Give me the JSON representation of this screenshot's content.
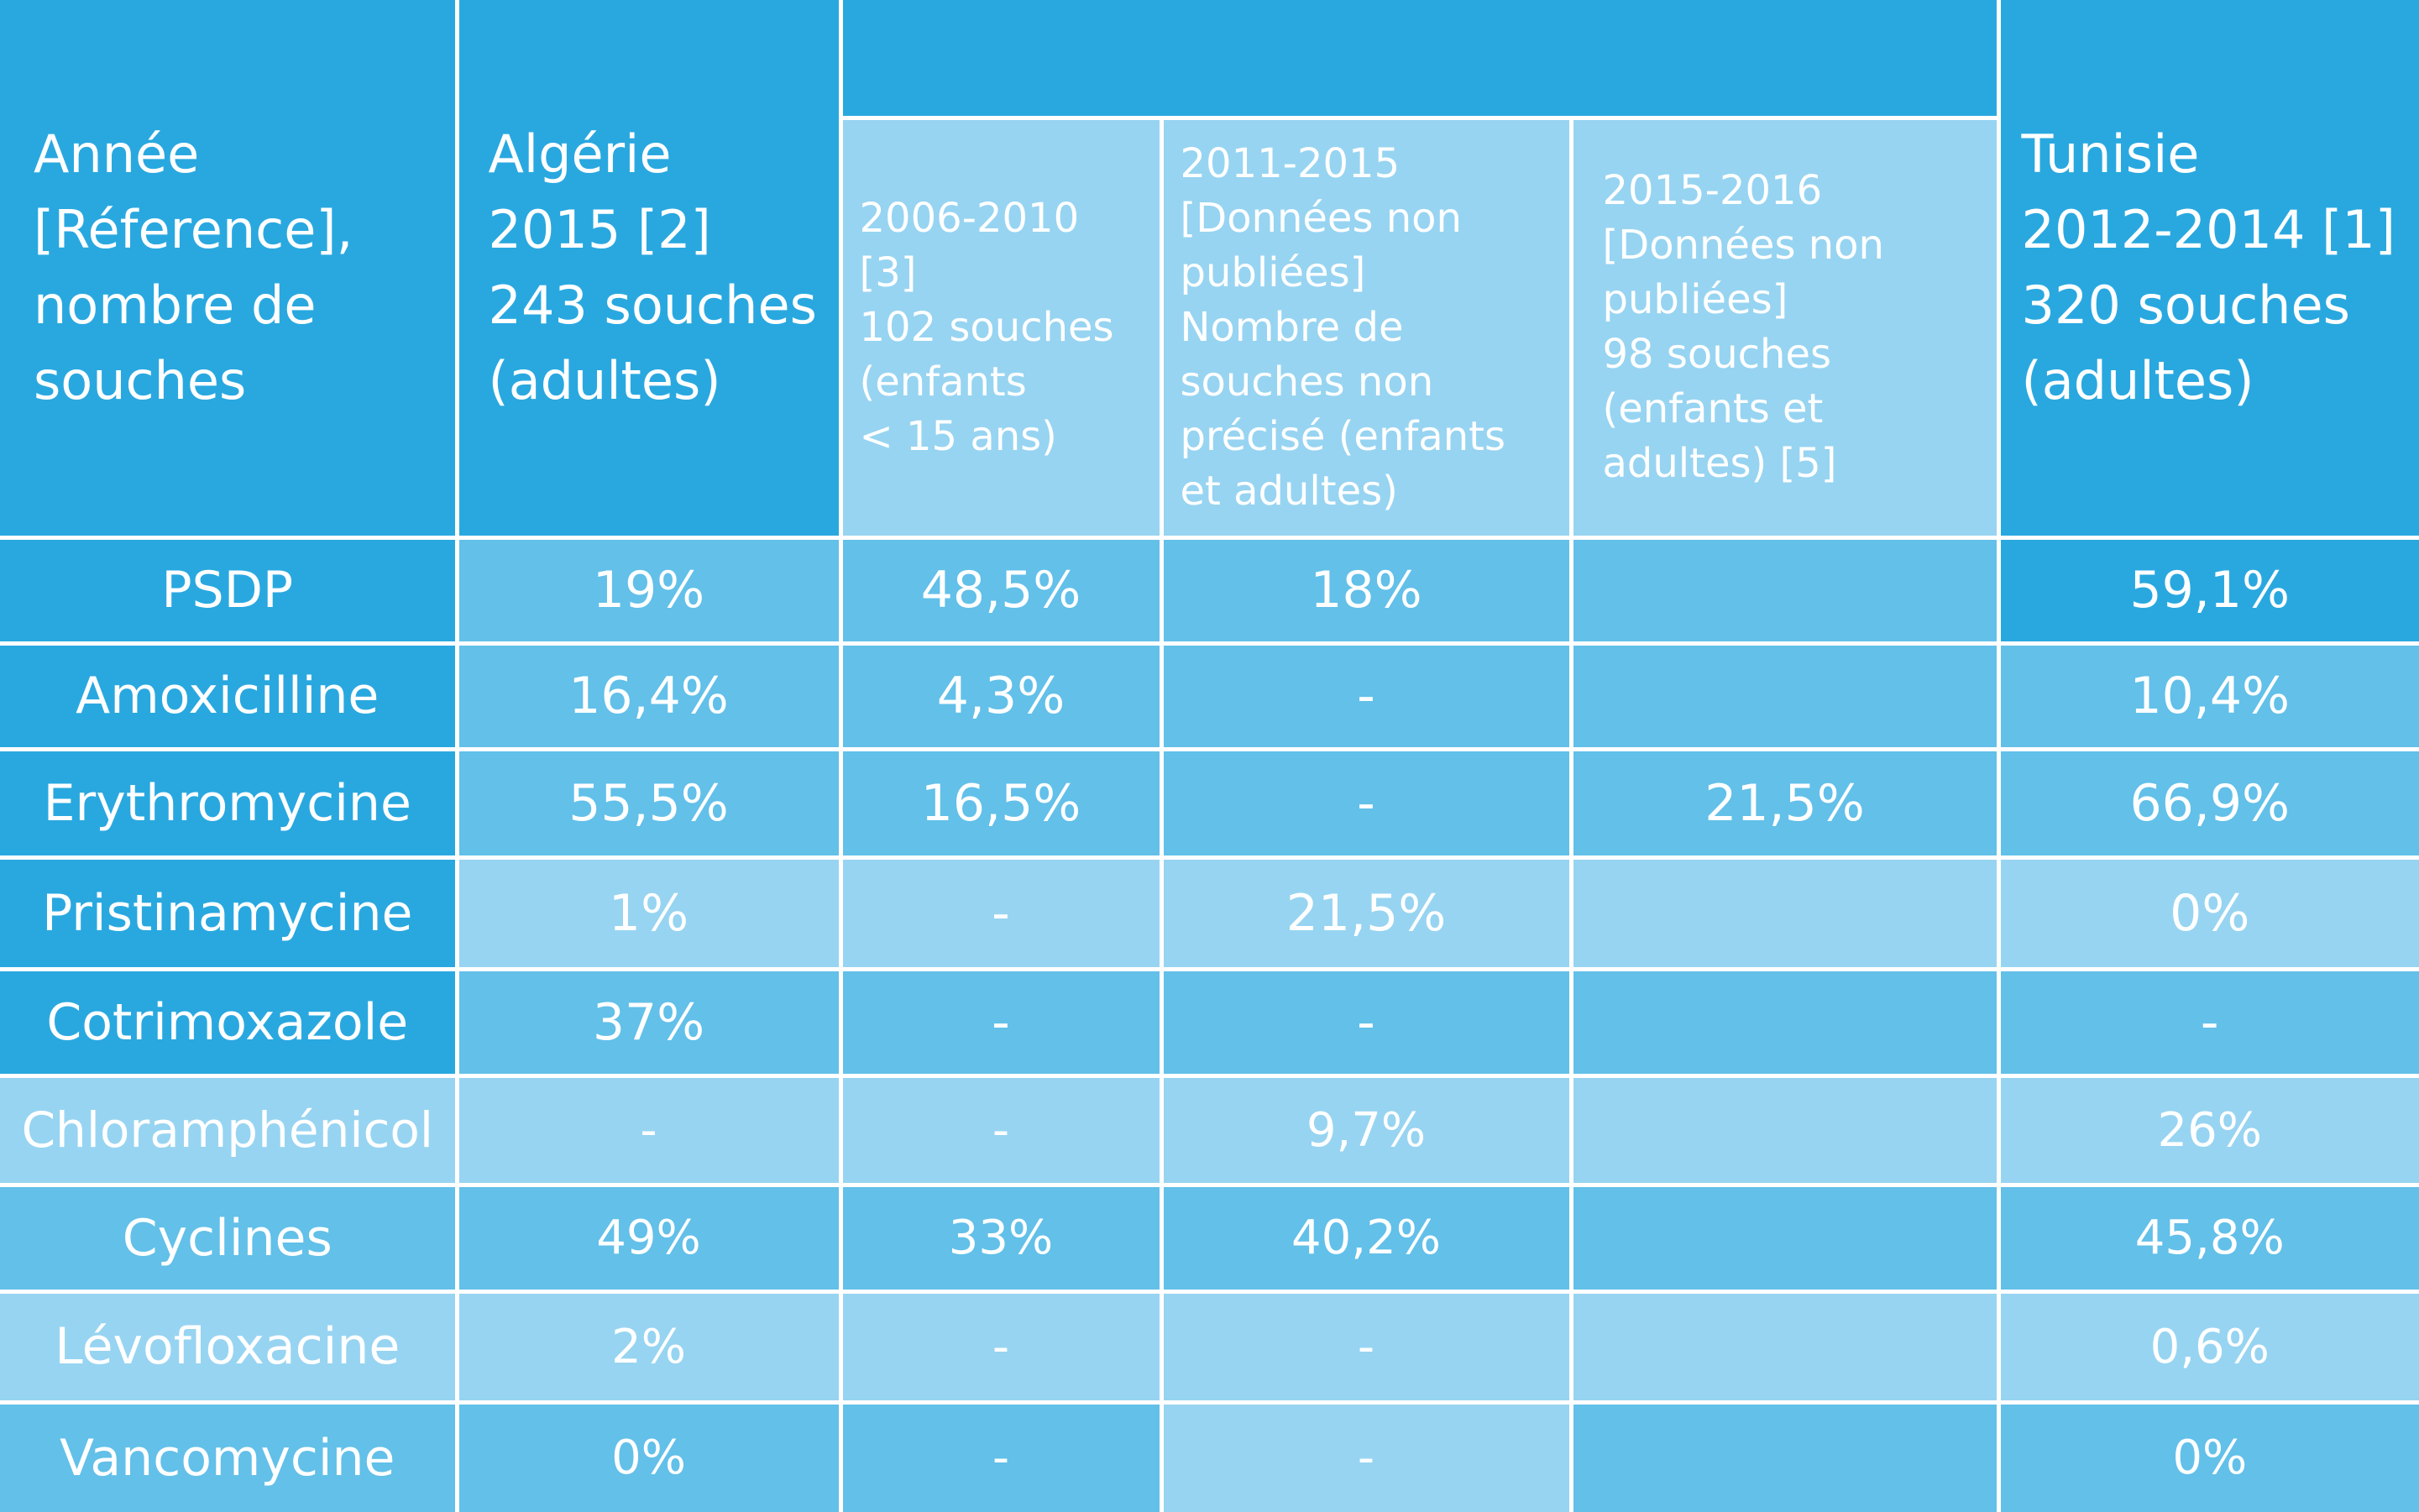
{
  "header": {
    "col1": [
      "Année",
      "[Réference],",
      "nombre de",
      "souches"
    ],
    "col2": [
      "Algérie",
      "2015 [2]",
      "243 souches",
      "(adultes)"
    ],
    "col3": [
      "2006-2010",
      "[3]",
      "102 souches",
      "(enfants",
      "< 15 ans)"
    ],
    "col4": [
      "2011-2015",
      "[Données non",
      "publiées]",
      "Nombre de",
      "souches non",
      "précisé (enfants",
      "et adultes)"
    ],
    "col5": [
      "2015-2016",
      "[Données non",
      "publiées]",
      "98 souches",
      "(enfants et",
      "adultes) [5]"
    ],
    "col6": [
      "Tunisie",
      "2012-2014 [1]",
      "320 souches",
      "(adultes)"
    ]
  },
  "rows": [
    {
      "label": "PSDP",
      "values": [
        "19%",
        "48,5%",
        "18%",
        "",
        "59,1%"
      ]
    },
    {
      "label": "Amoxicilline",
      "values": [
        "16,4%",
        "4,3%",
        "-",
        "",
        "10,4%"
      ]
    },
    {
      "label": "Erythromycine",
      "values": [
        "55,5%",
        "16,5%",
        "-",
        "21,5%",
        "66,9%"
      ]
    },
    {
      "label": "Pristinamycine",
      "values": [
        "1%",
        "-",
        "21,5%",
        "",
        "0%"
      ]
    },
    {
      "label": "Cotrimoxazole",
      "values": [
        "37%",
        "-",
        "-",
        "",
        "-"
      ]
    },
    {
      "label": "Chloramphénicol",
      "values": [
        "-",
        "-",
        "9,7%",
        "",
        "26%"
      ]
    },
    {
      "label": "Cyclines",
      "values": [
        "49%",
        "33%",
        "40,2%",
        "",
        "45,8%"
      ]
    },
    {
      "label": "Lévofloxacine",
      "values": [
        "2%",
        "-",
        "-",
        "",
        "0,6%"
      ]
    },
    {
      "label": "Vancomycine",
      "values": [
        "0%",
        "-",
        "-",
        "",
        "0%"
      ]
    }
  ]
}
